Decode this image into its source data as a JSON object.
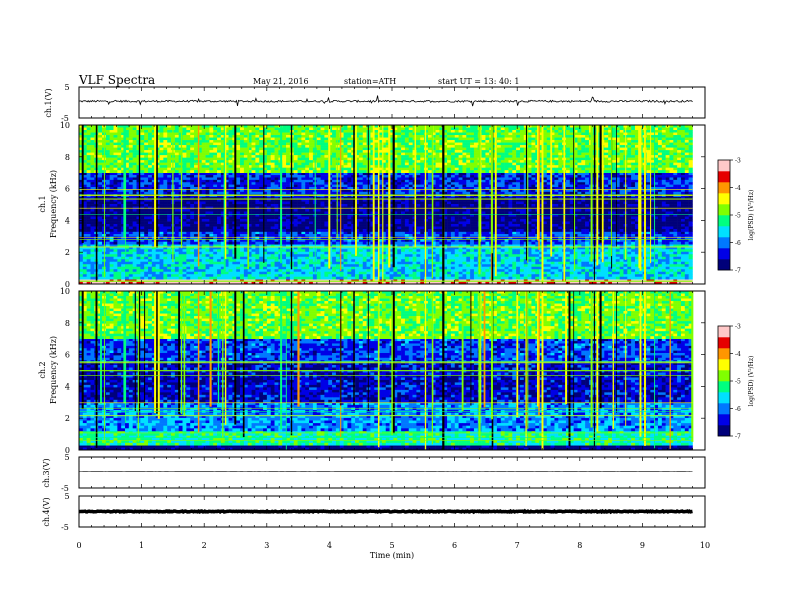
{
  "header": {
    "title": "VLF  Spectra",
    "date": "May 21, 2016",
    "station": "station=ATH",
    "start": "start  UT  =   13: 40: 1"
  },
  "colors": {
    "background": "#ffffff",
    "axis": "#000000",
    "trace": "#000000",
    "colormap": [
      "#00007a",
      "#0000e6",
      "#0078ff",
      "#00e0ff",
      "#00ff80",
      "#80ff00",
      "#ffff00",
      "#ff9600",
      "#e60000",
      "#ffc8c8"
    ]
  },
  "chart_data": [
    {
      "id": "ch1_waveform",
      "type": "line",
      "ylabel": "ch.1(V)",
      "ylim": [
        -5,
        5
      ],
      "yticks": [
        "5",
        "-5"
      ],
      "xlim": [
        0,
        10
      ],
      "series": [
        {
          "x": [
            0,
            9.8
          ],
          "y": [
            0.4,
            0.4
          ]
        }
      ],
      "noise_amplitude": 0.6
    },
    {
      "id": "ch1_spectrogram",
      "type": "heatmap",
      "ylabel": "Frequency  (kHz)",
      "channel_label": "ch.1",
      "ylim": [
        0,
        10
      ],
      "yticks": [
        "0",
        "2",
        "4",
        "6",
        "8",
        "10"
      ],
      "xlim": [
        0,
        10
      ],
      "data_end": 9.8,
      "colorbar": {
        "label": "log(PSD) (V²/Hz)",
        "range": [
          -7,
          -3
        ],
        "ticks": [
          "-3",
          "-4",
          "-5",
          "-6",
          "-7"
        ]
      },
      "bands": [
        {
          "f": [
            0,
            0.3
          ],
          "logpsd": -3.2
        },
        {
          "f": [
            0.3,
            2.5
          ],
          "logpsd": -5.6
        },
        {
          "f": [
            2.5,
            3.3
          ],
          "logpsd": -6.2
        },
        {
          "f": [
            3.3,
            5.5
          ],
          "logpsd": -6.8
        },
        {
          "f": [
            5.5,
            7
          ],
          "logpsd": -6.3
        },
        {
          "f": [
            7,
            10
          ],
          "logpsd": -4.9
        }
      ]
    },
    {
      "id": "ch2_spectrogram",
      "type": "heatmap",
      "ylabel": "Frequency  (kHz)",
      "channel_label": "ch.2",
      "ylim": [
        0,
        10
      ],
      "yticks": [
        "0",
        "2",
        "4",
        "6",
        "8",
        "10"
      ],
      "xlim": [
        0,
        10
      ],
      "data_end": 9.8,
      "colorbar": {
        "label": "log(PSD) (V²/Hz)",
        "range": [
          -7,
          -3
        ],
        "ticks": [
          "-3",
          "-4",
          "-5",
          "-6",
          "-7"
        ]
      },
      "bands": [
        {
          "f": [
            0,
            0.3
          ],
          "logpsd": -6.9
        },
        {
          "f": [
            0.3,
            1.2
          ],
          "logpsd": -5.3
        },
        {
          "f": [
            1.2,
            3
          ],
          "logpsd": -5.9
        },
        {
          "f": [
            3,
            5.5
          ],
          "logpsd": -6.5
        },
        {
          "f": [
            5.5,
            7
          ],
          "logpsd": -6.2
        },
        {
          "f": [
            7,
            10
          ],
          "logpsd": -4.9
        }
      ]
    },
    {
      "id": "ch3_waveform",
      "type": "line",
      "ylabel": "ch.3(V)",
      "ylim": [
        -5,
        5
      ],
      "yticks": [
        "5",
        "-5"
      ],
      "xlim": [
        0,
        10
      ],
      "series": [
        {
          "x": [
            0,
            9.8
          ],
          "y": [
            0.3,
            0.3
          ]
        }
      ],
      "noise_amplitude": 0.05
    },
    {
      "id": "ch4_waveform",
      "type": "line",
      "ylabel": "ch.4(V)",
      "ylim": [
        -5,
        5
      ],
      "yticks": [
        "5",
        "-5"
      ],
      "xlim": [
        0,
        10
      ],
      "series": [
        {
          "x": [
            0,
            9.8
          ],
          "y": [
            0,
            0
          ]
        }
      ],
      "noise_amplitude": 0.3
    }
  ],
  "xaxis": {
    "label": "Time  (min)",
    "ticks": [
      "0",
      "1",
      "2",
      "3",
      "4",
      "5",
      "6",
      "7",
      "8",
      "9",
      "10"
    ]
  }
}
